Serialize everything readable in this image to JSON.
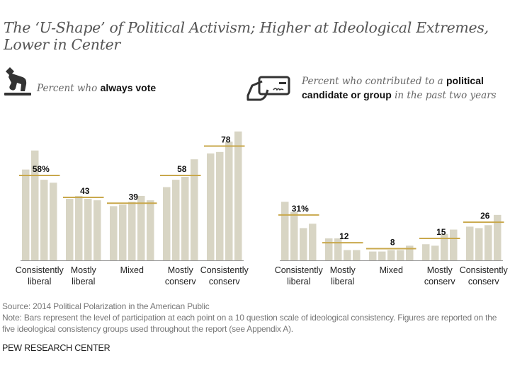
{
  "title": "The ‘U-Shape’ of Political Activism; Higher at Ideological Extremes, Lower in Center",
  "panels": {
    "left": {
      "subtitle_prefix": "Percent who ",
      "subtitle_bold": "always vote",
      "subtitle_suffix": "",
      "icon": "ballot-voting-icon"
    },
    "right": {
      "subtitle_prefix": "Percent who contributed to a ",
      "subtitle_bold": "political candidate or group",
      "subtitle_suffix": " in the past two years",
      "icon": "check-payment-icon"
    }
  },
  "colors": {
    "bar": "#d8d5c4",
    "avg_line": "#c9a84c",
    "axis": "#999999",
    "label": "#111111"
  },
  "chart_data": [
    {
      "type": "bar",
      "title": "Percent who always vote",
      "xlabel": "",
      "ylabel": "",
      "ylim": [
        0,
        90
      ],
      "grid": false,
      "categories": [
        [
          "Consistently",
          "liberal"
        ],
        [
          "Mostly",
          "liberal"
        ],
        [
          "Mixed"
        ],
        [
          "Mostly",
          "conserv"
        ],
        [
          "Consistently",
          "conserv"
        ]
      ],
      "group_averages": [
        58,
        43,
        39,
        58,
        78
      ],
      "average_labels": [
        "58%",
        "43",
        "39",
        "58",
        "78"
      ],
      "bar_values": [
        [
          62,
          75,
          55,
          53
        ],
        [
          42,
          44,
          42,
          41
        ],
        [
          37,
          38,
          40,
          44,
          41
        ],
        [
          50,
          55,
          57,
          69
        ],
        [
          73,
          74,
          81,
          88
        ]
      ]
    },
    {
      "type": "bar",
      "title": "Percent who contributed to a political candidate or group in the past two years",
      "xlabel": "",
      "ylabel": "",
      "ylim": [
        0,
        90
      ],
      "grid": false,
      "categories": [
        [
          "Consistently",
          "liberal"
        ],
        [
          "Mostly",
          "liberal"
        ],
        [
          "Mixed"
        ],
        [
          "Mostly",
          "conserv"
        ],
        [
          "Consistently",
          "conserv"
        ]
      ],
      "group_averages": [
        31,
        12,
        8,
        15,
        26
      ],
      "average_labels": [
        "31%",
        "12",
        "8",
        "15",
        "26"
      ],
      "bar_values": [
        [
          40,
          33,
          22,
          25
        ],
        [
          15,
          15,
          7,
          7
        ],
        [
          6,
          6,
          7,
          7,
          10
        ],
        [
          11,
          10,
          18,
          21
        ],
        [
          23,
          22,
          24,
          31
        ]
      ]
    }
  ],
  "footer": {
    "source": "Source: 2014 Political Polarization in the American Public",
    "note": "Note: Bars represent the level of participation at each point on a 10 question scale of ideological consistency. Figures are reported on the five ideological consistency groups used throughout the report (see Appendix A).",
    "brand": "PEW RESEARCH CENTER"
  }
}
